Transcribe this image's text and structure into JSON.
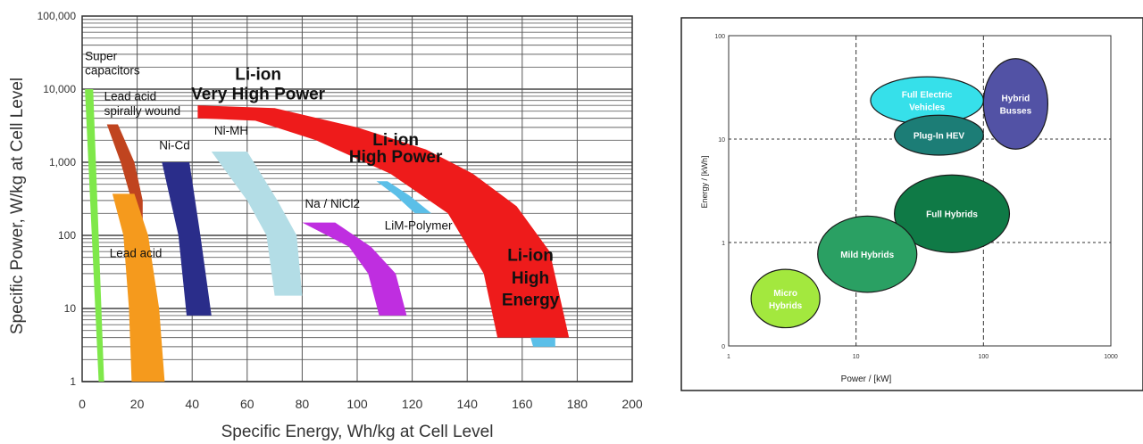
{
  "chart_data": [
    {
      "type": "area",
      "xlabel": "Specific Energy, Wh/kg at Cell Level",
      "ylabel": "Specific Power, W/kg at Cell Level",
      "xlim": [
        0,
        200
      ],
      "ylim": [
        1,
        100000
      ],
      "y_scale": "log",
      "grid": true,
      "x_ticks": [
        {
          "v": 0,
          "label": "0"
        },
        {
          "v": 20,
          "label": "20"
        },
        {
          "v": 40,
          "label": "40"
        },
        {
          "v": 60,
          "label": "60"
        },
        {
          "v": 80,
          "label": "80"
        },
        {
          "v": 100,
          "label": "100"
        },
        {
          "v": 120,
          "label": "120"
        },
        {
          "v": 140,
          "label": "140"
        },
        {
          "v": 160,
          "label": "160"
        },
        {
          "v": 180,
          "label": "180"
        },
        {
          "v": 200,
          "label": "200"
        }
      ],
      "y_ticks": [
        {
          "v": 1,
          "label": "1"
        },
        {
          "v": 10,
          "label": "10"
        },
        {
          "v": 100,
          "label": "100"
        },
        {
          "v": 1000,
          "label": "1,000"
        },
        {
          "v": 10000,
          "label": "10,000"
        },
        {
          "v": 100000,
          "label": "100,000"
        }
      ],
      "regions": [
        {
          "name": "Super capacitors",
          "color": "#7fe84a",
          "polygon": [
            [
              1,
              10000
            ],
            [
              4,
              10000
            ],
            [
              8,
              1
            ],
            [
              6,
              1
            ]
          ]
        },
        {
          "name": "Lead acid spirally wound",
          "color": "#c0441f",
          "polygon": [
            [
              9,
              3300
            ],
            [
              13,
              3300
            ],
            [
              19,
              1000
            ],
            [
              22,
              300
            ],
            [
              22,
              100
            ],
            [
              19,
              100
            ],
            [
              18,
              300
            ],
            [
              14,
              1000
            ]
          ]
        },
        {
          "name": "Lead acid",
          "color": "#f59a1d",
          "polygon": [
            [
              11,
              370
            ],
            [
              19,
              370
            ],
            [
              24,
              100
            ],
            [
              28,
              10
            ],
            [
              30,
              1
            ],
            [
              18,
              1
            ],
            [
              17,
              10
            ],
            [
              15,
              100
            ]
          ]
        },
        {
          "name": "Ni-Cd",
          "color": "#2a2d8a",
          "polygon": [
            [
              29,
              1000
            ],
            [
              39,
              1000
            ],
            [
              43,
              100
            ],
            [
              47,
              8
            ],
            [
              38,
              8
            ],
            [
              35,
              100
            ]
          ]
        },
        {
          "name": "Ni-MH",
          "color": "#b3dde6",
          "polygon": [
            [
              47,
              1400
            ],
            [
              60,
              1400
            ],
            [
              71,
              300
            ],
            [
              78,
              100
            ],
            [
              80,
              15
            ],
            [
              70,
              15
            ],
            [
              67,
              100
            ],
            [
              60,
              300
            ]
          ]
        },
        {
          "name": "Na / NiCl2",
          "color": "#bf2ee0",
          "polygon": [
            [
              80,
              150
            ],
            [
              92,
              150
            ],
            [
              105,
              70
            ],
            [
              114,
              30
            ],
            [
              118,
              8
            ],
            [
              108,
              8
            ],
            [
              104,
              30
            ],
            [
              97,
              70
            ]
          ]
        },
        {
          "name": "LiM-Polymer",
          "color": "#5bbfe8",
          "polygon": [
            [
              107,
              550
            ],
            [
              114,
              350
            ],
            [
              121,
              200
            ],
            [
              127,
              200
            ],
            [
              119,
              350
            ],
            [
              111,
              550
            ]
          ]
        },
        {
          "name": "LiM-Polymer-low",
          "color": "#5bbfe8",
          "polygon": [
            [
              163,
              4
            ],
            [
              172,
              4
            ],
            [
              172,
              3
            ],
            [
              164,
              3
            ]
          ]
        },
        {
          "name": "Li-ion",
          "color": "#ee1b1b",
          "polygon": [
            [
              42,
              6000
            ],
            [
              70,
              5500
            ],
            [
              100,
              3000
            ],
            [
              125,
              1500
            ],
            [
              142,
              700
            ],
            [
              158,
              250
            ],
            [
              170,
              60
            ],
            [
              177,
              4
            ],
            [
              151,
              4
            ],
            [
              146,
              30
            ],
            [
              133,
              200
            ],
            [
              112,
              700
            ],
            [
              85,
              2000
            ],
            [
              63,
              3700
            ],
            [
              42,
              4000
            ]
          ]
        }
      ],
      "labels": [
        {
          "text": "Super",
          "x": 1,
          "y": 25000,
          "bold": false
        },
        {
          "text": "capacitors",
          "x": 1,
          "y": 16000,
          "bold": false
        },
        {
          "text": "Lead acid",
          "x": 8,
          "y": 7000,
          "bold": false
        },
        {
          "text": "spirally wound",
          "x": 8,
          "y": 4400,
          "bold": false
        },
        {
          "text": "Ni-MH",
          "x": 48,
          "y": 2400,
          "bold": false
        },
        {
          "text": "Ni-Cd",
          "x": 28,
          "y": 1500,
          "bold": false
        },
        {
          "text": "Na / NiCl2",
          "x": 81,
          "y": 240,
          "bold": false
        },
        {
          "text": "LiM-Polymer",
          "x": 110,
          "y": 120,
          "bold": false
        },
        {
          "text": "Lead acid",
          "x": 10,
          "y": 50,
          "bold": false
        },
        {
          "text": "Li-ion",
          "x": 64,
          "y": 13500,
          "bold": true,
          "anchor": "middle"
        },
        {
          "text": "Very High Power",
          "x": 64,
          "y": 7200,
          "bold": true,
          "anchor": "middle"
        },
        {
          "text": "Li-ion",
          "x": 114,
          "y": 1700,
          "bold": true,
          "anchor": "middle"
        },
        {
          "text": "High Power",
          "x": 114,
          "y": 1000,
          "bold": true,
          "anchor": "middle"
        },
        {
          "text": "Li-ion",
          "x": 163,
          "y": 45,
          "bold": true,
          "anchor": "middle"
        },
        {
          "text": "High",
          "x": 163,
          "y": 22,
          "bold": true,
          "anchor": "middle"
        },
        {
          "text": "Energy",
          "x": 163,
          "y": 11,
          "bold": true,
          "anchor": "middle"
        }
      ]
    },
    {
      "type": "scatter",
      "xlabel": "Power / [kW]",
      "ylabel": "Energy / [kWh]",
      "x_scale": "log",
      "y_scale": "log",
      "xlim": [
        1,
        1000
      ],
      "ylim": [
        0.1,
        100
      ],
      "x_ticks": [
        {
          "v": 1,
          "label": "1"
        },
        {
          "v": 10,
          "label": "10"
        },
        {
          "v": 100,
          "label": "100"
        },
        {
          "v": 1000,
          "label": "1000"
        }
      ],
      "y_ticks": [
        {
          "v": 0.1,
          "label": "0"
        },
        {
          "v": 1,
          "label": "1"
        },
        {
          "v": 10,
          "label": "10"
        },
        {
          "v": 100,
          "label": "100"
        }
      ],
      "gridlines": {
        "x": [
          10,
          100
        ],
        "y": [
          1,
          10
        ]
      },
      "bubbles": [
        {
          "name": "Full Electric Vehicles",
          "lines": [
            "Full Electric",
            "Vehicles"
          ],
          "x_range": [
            13,
            100
          ],
          "y_range": [
            14,
            40
          ],
          "color": "#36e0ea"
        },
        {
          "name": "Hybrid Busses",
          "lines": [
            "Hybrid",
            "Busses"
          ],
          "x_range": [
            100,
            320
          ],
          "y_range": [
            8,
            60
          ],
          "color": "#5252a5"
        },
        {
          "name": "Plug-In HEV",
          "lines": [
            "Plug-In HEV"
          ],
          "x_range": [
            20,
            100
          ],
          "y_range": [
            7,
            17
          ],
          "color": "#1c7d76"
        },
        {
          "name": "Full Hybrids",
          "lines": [
            "Full Hybrids"
          ],
          "x_range": [
            20,
            160
          ],
          "y_range": [
            0.8,
            4.5
          ],
          "color": "#0f7a46"
        },
        {
          "name": "Mild Hybrids",
          "lines": [
            "Mild Hybrids"
          ],
          "x_range": [
            5,
            30
          ],
          "y_range": [
            0.33,
            1.8
          ],
          "color": "#2aa063"
        },
        {
          "name": "Micro Hybrids",
          "lines": [
            "Micro",
            "Hybrids"
          ],
          "x_range": [
            1.5,
            5.2
          ],
          "y_range": [
            0.15,
            0.55
          ],
          "color": "#a3e83e"
        }
      ]
    }
  ]
}
